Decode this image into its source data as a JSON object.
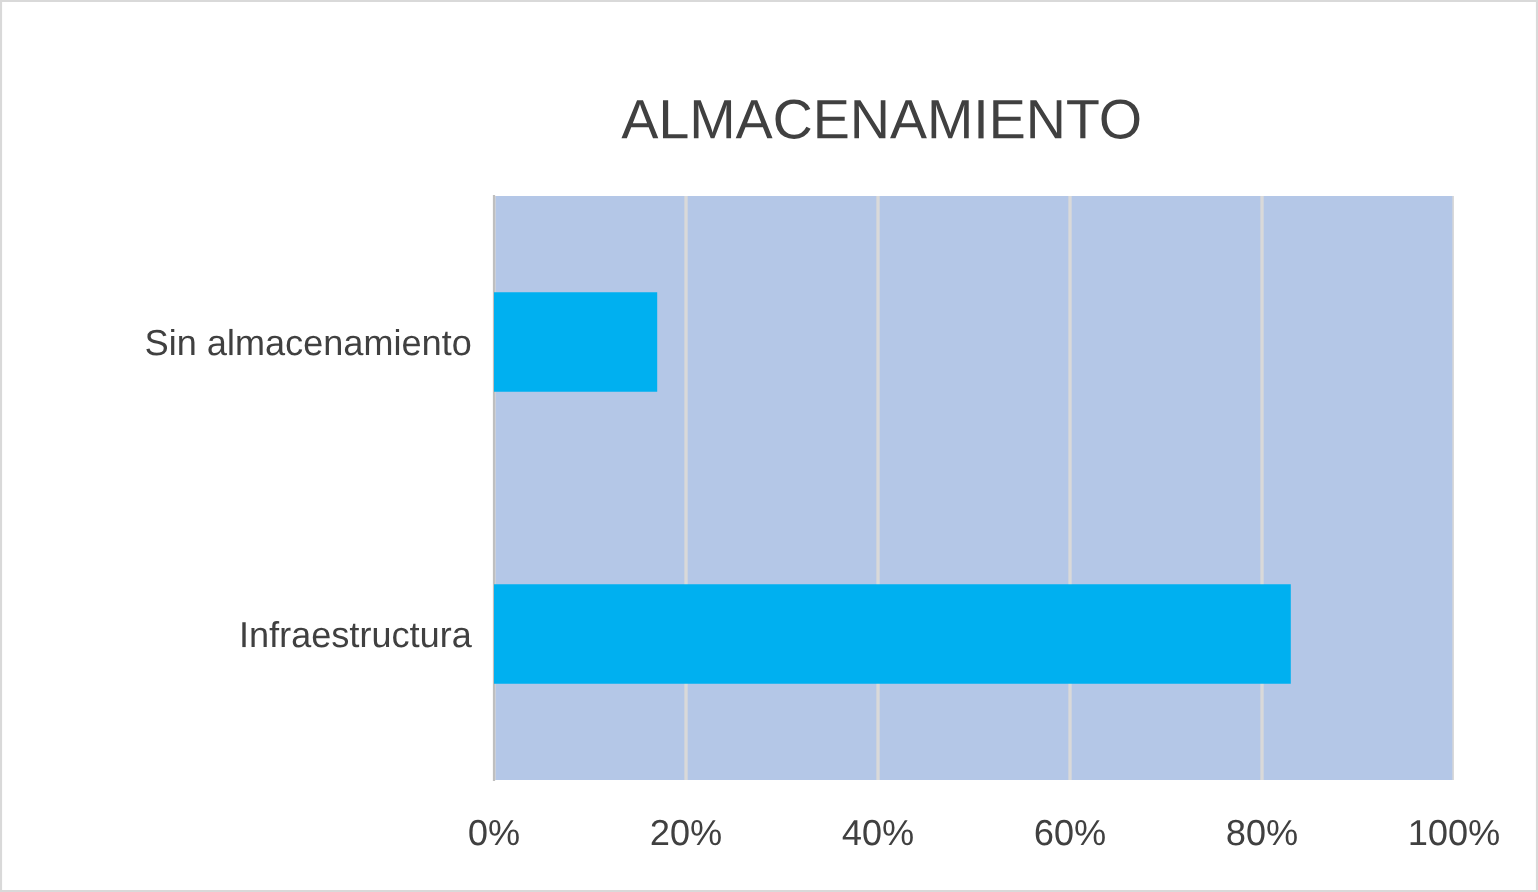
{
  "chart_data": {
    "type": "bar",
    "orientation": "horizontal",
    "title": "ALMACENAMIENTO",
    "categories": [
      "Sin almacenamiento",
      "Infraestructura"
    ],
    "values": [
      17,
      83
    ],
    "color": "#00b0f0",
    "xlim": [
      0,
      100
    ],
    "xticks": [
      {
        "value": 0,
        "label": "0%"
      },
      {
        "value": 20,
        "label": "20%"
      },
      {
        "value": 40,
        "label": "40%"
      },
      {
        "value": 60,
        "label": "60%"
      },
      {
        "value": 80,
        "label": "80%"
      },
      {
        "value": 100,
        "label": "100%"
      }
    ],
    "grid": "x",
    "legend": false
  }
}
